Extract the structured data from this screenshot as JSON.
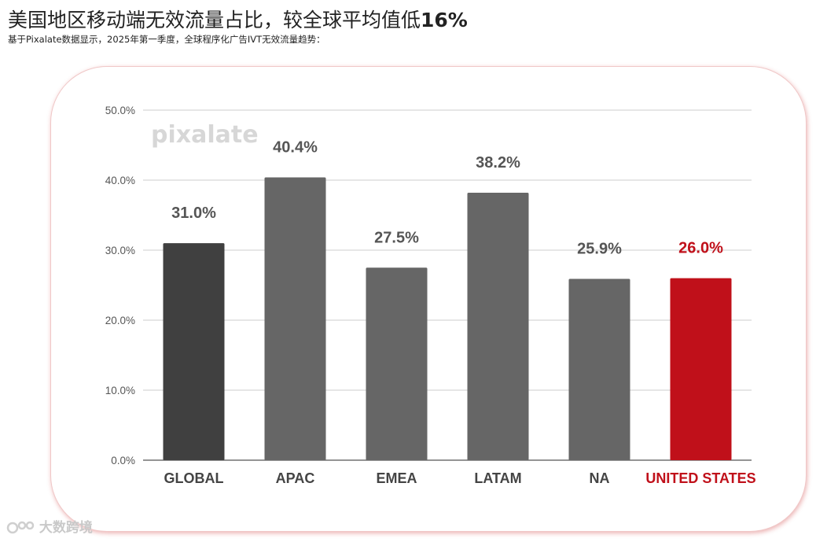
{
  "header": {
    "title_main": "美国地区移动端无效流量占比，较全球平均值低",
    "title_highlight": "16%",
    "subtitle": "基于Pixalate数据显示，2025年第一季度，全球程序化广告IVT无效流量趋势："
  },
  "watermark": "pixalate",
  "footer": {
    "brand": "大数跨境"
  },
  "colors": {
    "global": "#404040",
    "region": "#666666",
    "highlight": "#c0101a",
    "grid": "#cccccc"
  },
  "chart_data": {
    "type": "bar",
    "categories": [
      "GLOBAL",
      "APAC",
      "EMEA",
      "LATAM",
      "NA",
      "UNITED STATES"
    ],
    "values": [
      31.0,
      40.4,
      27.5,
      38.2,
      25.9,
      26.0
    ],
    "data_labels": [
      "31.0%",
      "40.4%",
      "27.5%",
      "38.2%",
      "25.9%",
      "26.0%"
    ],
    "highlight_index": 5,
    "ylim": [
      0,
      50
    ],
    "yticks": [
      0,
      10,
      20,
      30,
      40,
      50
    ],
    "ytick_labels": [
      "0.0%",
      "10.0%",
      "20.0%",
      "30.0%",
      "40.0%",
      "50.0%"
    ],
    "grid": true
  }
}
